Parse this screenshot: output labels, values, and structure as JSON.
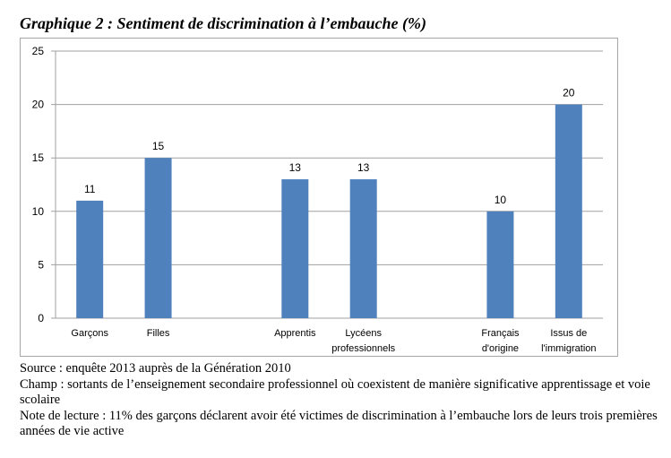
{
  "chart_data": {
    "type": "bar",
    "title": "Graphique 2 : Sentiment de discrimination à l’embauche (%)",
    "categories": [
      "Garçons",
      "Filles",
      "",
      "Apprentis",
      "Lycéens\nprofessionnels",
      "",
      "Français\nd'origine",
      "Issus de\nl'immigration"
    ],
    "values": [
      11,
      15,
      null,
      13,
      13,
      null,
      10,
      20
    ],
    "ylim": [
      0,
      25
    ],
    "yticks": [
      0,
      5,
      10,
      15,
      20,
      25
    ],
    "xlabel": "",
    "ylabel": "",
    "grid": true,
    "bar_color": "#4f81bd"
  },
  "notes": {
    "source": "Source : enquête 2013 auprès de la Génération 2010",
    "champ": "Champ : sortants de l’enseignement secondaire professionnel où coexistent de manière significative apprentissage et voie scolaire",
    "lecture": "Note de lecture : 11% des garçons déclarent avoir été victimes de discrimination à l’embauche lors de leurs trois premières années de vie active"
  }
}
